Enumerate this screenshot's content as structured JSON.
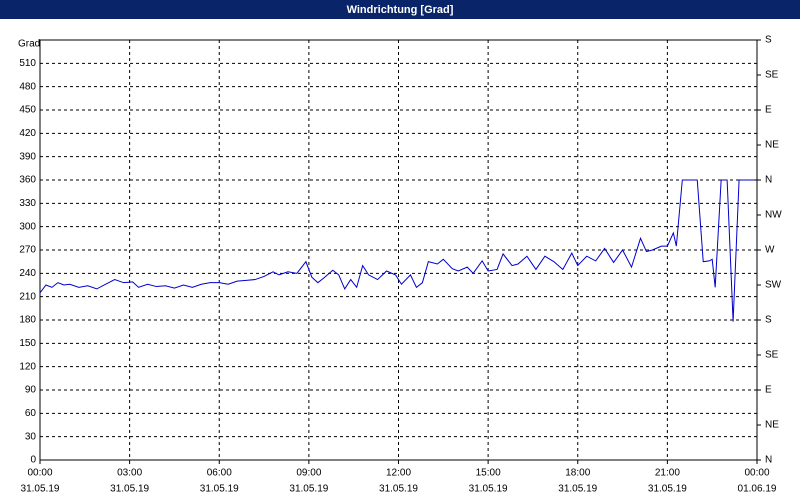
{
  "chart_data": {
    "type": "line",
    "title": "Windrichtung [Grad]",
    "ylabel": "Grad",
    "xlim": [
      0,
      24
    ],
    "xticks": [
      {
        "value": 0,
        "label": "00:00"
      },
      {
        "value": 3,
        "label": "03:00"
      },
      {
        "value": 6,
        "label": "06:00"
      },
      {
        "value": 9,
        "label": "09:00"
      },
      {
        "value": 12,
        "label": "12:00"
      },
      {
        "value": 15,
        "label": "15:00"
      },
      {
        "value": 18,
        "label": "18:00"
      },
      {
        "value": 21,
        "label": "21:00"
      },
      {
        "value": 24,
        "label": "00:00"
      }
    ],
    "xtick_dates": [
      "31.05.19",
      "31.05.19",
      "31.05.19",
      "31.05.19",
      "31.05.19",
      "31.05.19",
      "31.05.19",
      "31.05.19",
      "01.06.19"
    ],
    "ylim": [
      0,
      540
    ],
    "yticks": [
      0,
      30,
      60,
      90,
      120,
      150,
      180,
      210,
      240,
      270,
      300,
      330,
      360,
      390,
      420,
      450,
      480,
      510
    ],
    "y2lim": [
      0,
      540
    ],
    "y2ticks": [
      {
        "value": 0,
        "label": "N"
      },
      {
        "value": 45,
        "label": "NE"
      },
      {
        "value": 90,
        "label": "E"
      },
      {
        "value": 135,
        "label": "SE"
      },
      {
        "value": 180,
        "label": "S"
      },
      {
        "value": 225,
        "label": "SW"
      },
      {
        "value": 270,
        "label": "W"
      },
      {
        "value": 315,
        "label": "NW"
      },
      {
        "value": 360,
        "label": "N"
      },
      {
        "value": 405,
        "label": "NE"
      },
      {
        "value": 450,
        "label": "E"
      },
      {
        "value": 495,
        "label": "SE"
      },
      {
        "value": 540,
        "label": "S"
      }
    ],
    "grid": true,
    "series": [
      {
        "color": "#0000cc",
        "x": [
          0,
          0.2,
          0.4,
          0.6,
          0.8,
          1.0,
          1.3,
          1.6,
          1.9,
          2.2,
          2.5,
          2.8,
          3.1,
          3.3,
          3.6,
          3.9,
          4.2,
          4.5,
          4.8,
          5.1,
          5.4,
          5.7,
          6.0,
          6.3,
          6.6,
          6.9,
          7.2,
          7.5,
          7.8,
          8.0,
          8.3,
          8.6,
          8.9,
          9.1,
          9.3,
          9.5,
          9.8,
          10.0,
          10.2,
          10.4,
          10.6,
          10.8,
          11.0,
          11.3,
          11.6,
          11.9,
          12.1,
          12.4,
          12.6,
          12.8,
          13.0,
          13.3,
          13.5,
          13.8,
          14.0,
          14.3,
          14.5,
          14.8,
          15.0,
          15.3,
          15.5,
          15.8,
          16.0,
          16.3,
          16.6,
          16.9,
          17.2,
          17.5,
          17.8,
          18.0,
          18.3,
          18.6,
          18.9,
          19.2,
          19.5,
          19.8,
          20.1,
          20.3,
          20.5,
          20.8,
          21.0,
          21.2,
          21.3,
          21.5,
          22.0,
          22.2,
          22.4,
          22.5,
          22.6,
          22.8,
          23.0,
          23.2,
          23.4,
          23.9
        ],
        "values": [
          215,
          225,
          222,
          228,
          225,
          226,
          222,
          224,
          220,
          226,
          232,
          228,
          229,
          222,
          226,
          223,
          224,
          221,
          225,
          222,
          226,
          228,
          228,
          226,
          230,
          231,
          232,
          236,
          242,
          238,
          242,
          240,
          255,
          235,
          228,
          234,
          244,
          238,
          220,
          232,
          222,
          250,
          238,
          232,
          243,
          238,
          226,
          238,
          222,
          228,
          255,
          252,
          258,
          246,
          243,
          248,
          240,
          256,
          243,
          245,
          265,
          250,
          252,
          262,
          245,
          262,
          255,
          245,
          266,
          250,
          262,
          256,
          272,
          254,
          270,
          248,
          285,
          268,
          270,
          275,
          275,
          292,
          275,
          360,
          360,
          255,
          256,
          258,
          222,
          360,
          360,
          178,
          360,
          360
        ]
      }
    ]
  }
}
